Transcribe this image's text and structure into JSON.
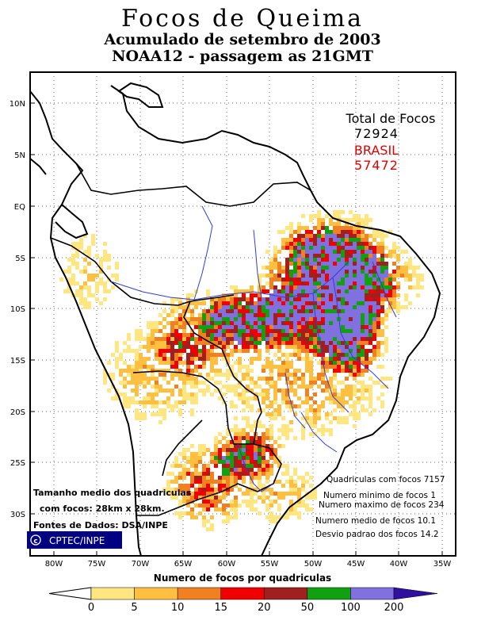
{
  "title": {
    "line1": "Focos de Queima",
    "line2": "Acumulado de setembro de 2003",
    "line3": "NOAA12 - passagem as 21GMT"
  },
  "totals": {
    "label": "Total de Focos",
    "total": "72924",
    "country": "BRASIL",
    "country_total": "57472",
    "country_color": "#e00000"
  },
  "axes": {
    "lat_labels": [
      "10N",
      "5N",
      "EQ",
      "5S",
      "10S",
      "15S",
      "20S",
      "25S",
      "30S"
    ],
    "lon_labels": [
      "80W",
      "75W",
      "70W",
      "65W",
      "60W",
      "55W",
      "50W",
      "45W",
      "40W",
      "35W"
    ]
  },
  "left_note": {
    "line1": "Tamanho medio dos quadriculas",
    "line2": "com focos: 28km x 28km.",
    "line3": "Fontes de Dados: DSA/INPE"
  },
  "logo": {
    "text": "CPTEC/INPE"
  },
  "stats": [
    "Quadriculas com focos 7157",
    "Numero minimo de focos 1",
    "Numero maximo de focos 234",
    "Numero medio de focos 10.1",
    "Desvio padrao dos focos 14.2"
  ],
  "colorbar": {
    "title": "Numero de focos por quadriculas",
    "labels": [
      "0",
      "5",
      "10",
      "15",
      "20",
      "50",
      "100",
      "200"
    ],
    "colors": [
      "#ffe680",
      "#ffbf40",
      "#f08020",
      "#f00000",
      "#a02020",
      "#10a010",
      "#8070e0",
      "#3010a0"
    ]
  }
}
